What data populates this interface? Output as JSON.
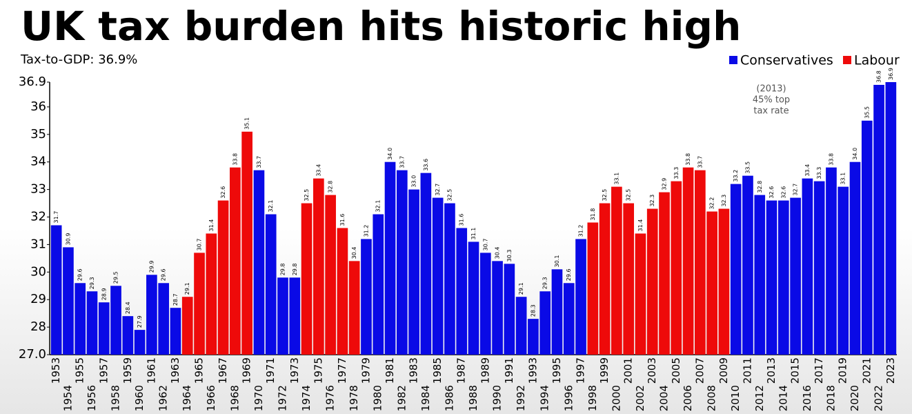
{
  "chart_data": {
    "type": "bar",
    "title": "UK tax burden hits historic high",
    "subtitle": "Tax-to-GDP: 36.9%",
    "annotation": [
      "(2013)",
      "45% top",
      "tax rate"
    ],
    "categories": [
      "1953",
      "1954",
      "1955",
      "1956",
      "1957",
      "1958",
      "1959",
      "1960",
      "1961",
      "1962",
      "1963",
      "1964",
      "1965",
      "1966",
      "1967",
      "1968",
      "1969",
      "1970",
      "1971",
      "1972",
      "1973",
      "1974",
      "1975",
      "1976",
      "1977",
      "1978",
      "1979",
      "1980",
      "1981",
      "1982",
      "1983",
      "1984",
      "1985",
      "1986",
      "1987",
      "1988",
      "1989",
      "1990",
      "1991",
      "1992",
      "1993",
      "1994",
      "1995",
      "1996",
      "1997",
      "1998",
      "1999",
      "2000",
      "2001",
      "2002",
      "2003",
      "2004",
      "2005",
      "2006",
      "2007",
      "2008",
      "2009",
      "2010",
      "2011",
      "2012",
      "2013",
      "2014",
      "2015",
      "2016",
      "2017",
      "2018",
      "2019",
      "2020",
      "2021",
      "2022",
      "2023"
    ],
    "series": [
      {
        "name": "Conservatives",
        "color": "#0a0ae6",
        "values": [
          31.7,
          30.9,
          29.6,
          29.3,
          28.9,
          29.5,
          28.4,
          27.9,
          29.9,
          29.6,
          28.7,
          null,
          null,
          null,
          null,
          null,
          null,
          33.7,
          32.1,
          29.8,
          29.8,
          null,
          null,
          null,
          null,
          null,
          31.2,
          32.1,
          34.0,
          33.7,
          33.0,
          33.6,
          32.7,
          32.5,
          31.6,
          31.1,
          30.7,
          30.4,
          30.3,
          29.1,
          28.3,
          29.3,
          30.1,
          29.6,
          31.2,
          null,
          null,
          null,
          null,
          null,
          null,
          null,
          null,
          null,
          null,
          null,
          null,
          33.2,
          33.5,
          32.8,
          32.6,
          32.6,
          32.7,
          33.4,
          33.3,
          33.8,
          33.1,
          34.0,
          35.5,
          36.8,
          36.9
        ],
        "value_labels": [
          "31.7",
          "30.9",
          "29.6",
          "29.3",
          "28.9",
          "29.5",
          "28.4",
          "27.9",
          "29.9",
          "29.6",
          "28.7",
          null,
          null,
          null,
          null,
          null,
          null,
          "33.7",
          "32.1",
          "29.8",
          "29.8",
          null,
          null,
          null,
          null,
          null,
          "31.2",
          "32.1",
          "34.0",
          "33.7",
          "33.0",
          "33.6",
          "32.7",
          "32.5",
          "31.6",
          "31.1",
          "30.7",
          "30.4",
          "30.3",
          "29.1",
          "28.3",
          "29.3",
          "30.1",
          "29.6",
          "31.2",
          null,
          null,
          null,
          null,
          null,
          null,
          null,
          null,
          null,
          null,
          null,
          null,
          "33.2",
          "33.5",
          "32.8",
          "32.6",
          "32.6",
          "32.7",
          "33.4",
          "33.3",
          "33.8",
          "33.1",
          "34.0",
          "35.5",
          "36.8",
          "36.9"
        ]
      },
      {
        "name": "Labour",
        "color": "#ee0a0a",
        "values": [
          null,
          null,
          null,
          null,
          null,
          null,
          null,
          null,
          null,
          null,
          null,
          29.1,
          30.7,
          31.4,
          32.6,
          33.8,
          35.1,
          null,
          null,
          null,
          null,
          32.5,
          33.4,
          32.8,
          31.6,
          30.4,
          null,
          null,
          null,
          null,
          null,
          null,
          null,
          null,
          null,
          null,
          null,
          null,
          null,
          null,
          null,
          null,
          null,
          null,
          null,
          31.8,
          32.5,
          33.1,
          32.5,
          31.4,
          32.3,
          32.9,
          33.3,
          33.8,
          33.7,
          32.2,
          32.3,
          null,
          null,
          null,
          null,
          null,
          null,
          null,
          null,
          null,
          null,
          null,
          null,
          null,
          null
        ],
        "value_labels": [
          null,
          null,
          null,
          null,
          null,
          null,
          null,
          null,
          null,
          null,
          null,
          "29.1",
          "30.7",
          "31.4",
          "32.6",
          "33.8",
          "35.1",
          null,
          null,
          null,
          null,
          "32.5",
          "33.4",
          "32.8",
          "31.6",
          "30.4",
          null,
          null,
          null,
          null,
          null,
          null,
          null,
          null,
          null,
          null,
          null,
          null,
          null,
          null,
          null,
          null,
          null,
          null,
          null,
          "31.8",
          "32.5",
          "33.1",
          "32.5",
          "31.4",
          "32.3",
          "32.9",
          "33.3",
          "33.8",
          "33.7",
          "32.2",
          "32.3",
          null,
          null,
          null,
          null,
          null,
          null,
          null,
          null,
          null,
          null,
          null,
          null,
          null,
          null
        ]
      }
    ],
    "ylim": [
      27.0,
      36.9
    ],
    "yticks": [
      {
        "value": 27,
        "label": "27.0"
      },
      28,
      29,
      30,
      31,
      32,
      33,
      34,
      35,
      36,
      36.9
    ],
    "legend": "top-right"
  }
}
